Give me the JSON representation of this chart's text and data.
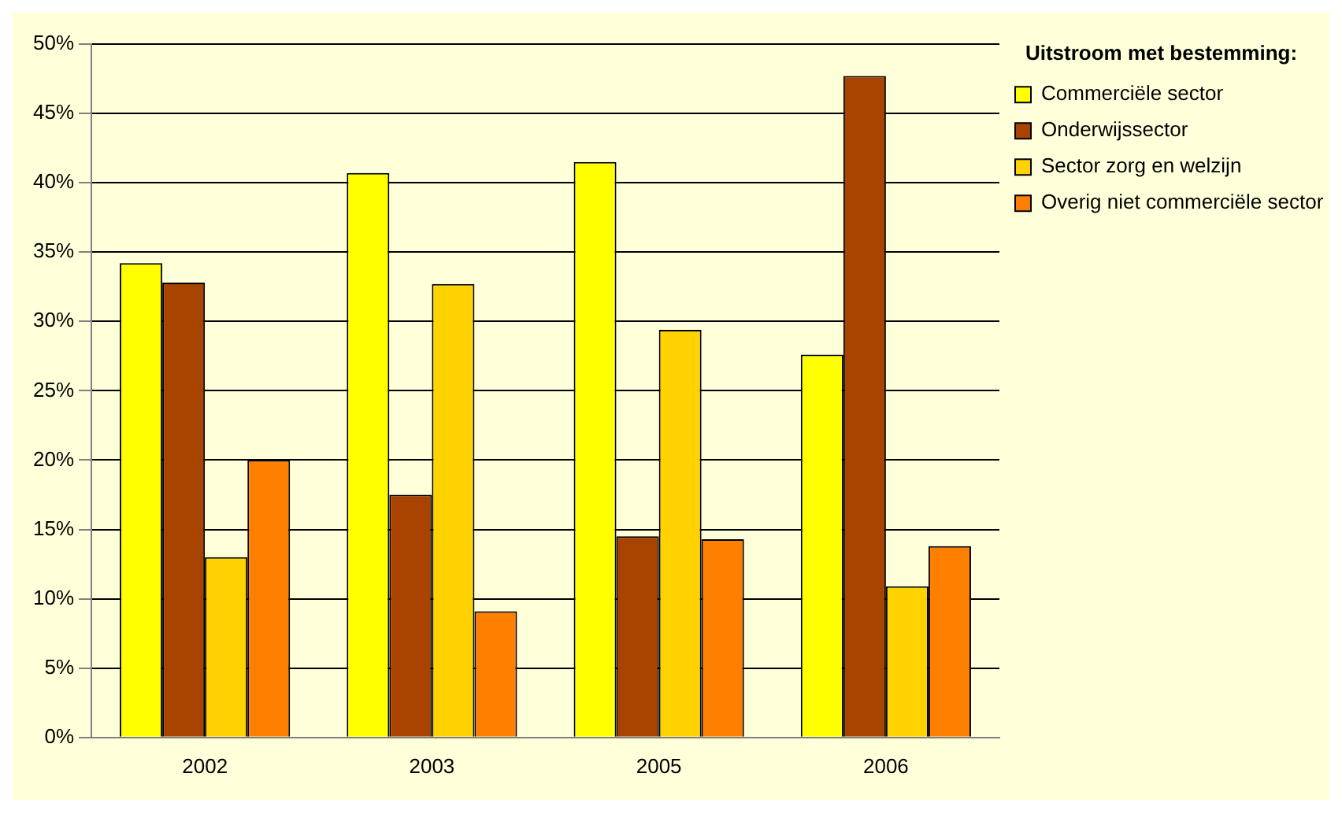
{
  "chart_data": {
    "type": "bar",
    "legend_title": "Uitstroom met bestemming:",
    "categories": [
      "2002",
      "2003",
      "2005",
      "2006"
    ],
    "series": [
      {
        "name": "Commerciële sector",
        "color": "#ffff00",
        "values": [
          34.2,
          40.7,
          41.5,
          27.6
        ]
      },
      {
        "name": "Onderwijssector",
        "color": "#a84300",
        "values": [
          32.8,
          17.5,
          14.5,
          47.7
        ]
      },
      {
        "name": "Sector zorg en welzijn",
        "color": "#ffd200",
        "values": [
          13.0,
          32.7,
          29.4,
          10.9
        ]
      },
      {
        "name": "Overig niet commerciële sector",
        "color": "#ff8000",
        "values": [
          20.0,
          9.1,
          14.3,
          13.8
        ]
      }
    ],
    "ylim": [
      0,
      50
    ],
    "yticks": [
      {
        "value": 0,
        "label": "0%"
      },
      {
        "value": 5,
        "label": "5%"
      },
      {
        "value": 10,
        "label": "10%"
      },
      {
        "value": 15,
        "label": "15%"
      },
      {
        "value": 20,
        "label": "20%"
      },
      {
        "value": 25,
        "label": "25%"
      },
      {
        "value": 30,
        "label": "30%"
      },
      {
        "value": 35,
        "label": "35%"
      },
      {
        "value": 40,
        "label": "40%"
      },
      {
        "value": 45,
        "label": "45%"
      },
      {
        "value": 50,
        "label": "50%"
      }
    ],
    "grid": "y",
    "legend": "top right"
  }
}
